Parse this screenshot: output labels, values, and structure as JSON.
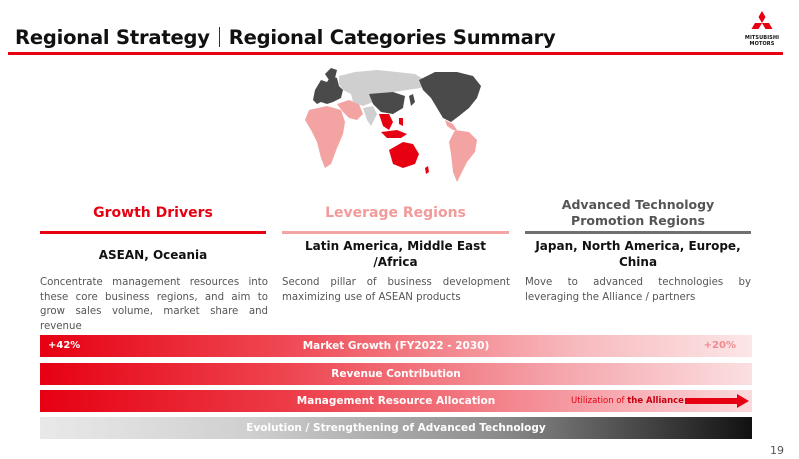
{
  "header": {
    "title_left": "Regional Strategy",
    "title_right": "Regional Categories Summary",
    "logo_line1": "MITSUBISHI",
    "logo_line2": "MOTORS"
  },
  "columns": [
    {
      "heading": "Growth Drivers",
      "regions": "ASEAN, Oceania",
      "description": "Concentrate management resources into these core business regions, and aim to grow sales volume, market share and revenue",
      "color": "#e60012"
    },
    {
      "heading": "Leverage Regions",
      "regions": "Latin America, Middle East /Africa",
      "description": "Second pillar of business development maximizing use of ASEAN products",
      "color": "#f39a9a"
    },
    {
      "heading": "Advanced Technology Promotion Regions",
      "regions": "Japan, North America, Europe, China",
      "description": "Move to advanced technologies by leveraging the Alliance / partners",
      "color": "#707070"
    }
  ],
  "bars": {
    "market_growth": {
      "label": "Market Growth (FY2022 - 2030)",
      "left_value": "+42%",
      "right_value": "+20%"
    },
    "revenue": {
      "label": "Revenue Contribution"
    },
    "management": {
      "label": "Management Resource Allocation",
      "alliance_prefix": "Utilization of ",
      "alliance_bold": "the Alliance"
    },
    "technology": {
      "label": "Evolution / Strengthening of Advanced Technology"
    }
  },
  "page_number": "19"
}
